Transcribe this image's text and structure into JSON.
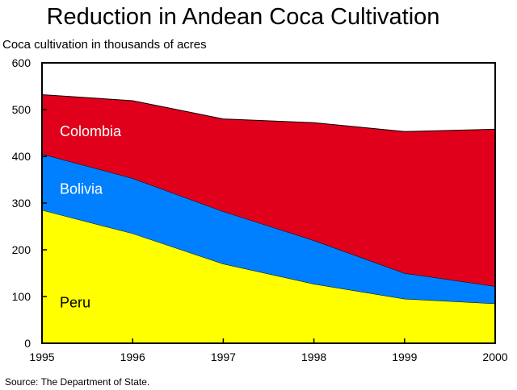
{
  "title": "Reduction in Andean Coca Cultivation",
  "ylabel": "Coca cultivation in thousands of acres",
  "source": "Source: The Department of State.",
  "chart_data": {
    "type": "area",
    "stacked": true,
    "title": "Reduction in Andean Coca Cultivation",
    "ylabel": "Coca cultivation in thousands of acres",
    "xlabel": "",
    "x": [
      1995,
      1996,
      1997,
      1998,
      1999,
      2000
    ],
    "xlim": [
      1995,
      2000
    ],
    "ylim": [
      0,
      600
    ],
    "yticks": [
      0,
      100,
      200,
      300,
      400,
      500,
      600
    ],
    "grid": false,
    "legend": "inline labels",
    "series": [
      {
        "name": "Peru",
        "color": "#ffff00",
        "values": [
          285,
          235,
          170,
          127,
          95,
          85
        ]
      },
      {
        "name": "Bolivia",
        "color": "#0080ff",
        "values": [
          120,
          118,
          112,
          93,
          55,
          37
        ]
      },
      {
        "name": "Colombia",
        "color": "#e0001b",
        "values": [
          127,
          166,
          198,
          252,
          303,
          336
        ]
      }
    ]
  }
}
